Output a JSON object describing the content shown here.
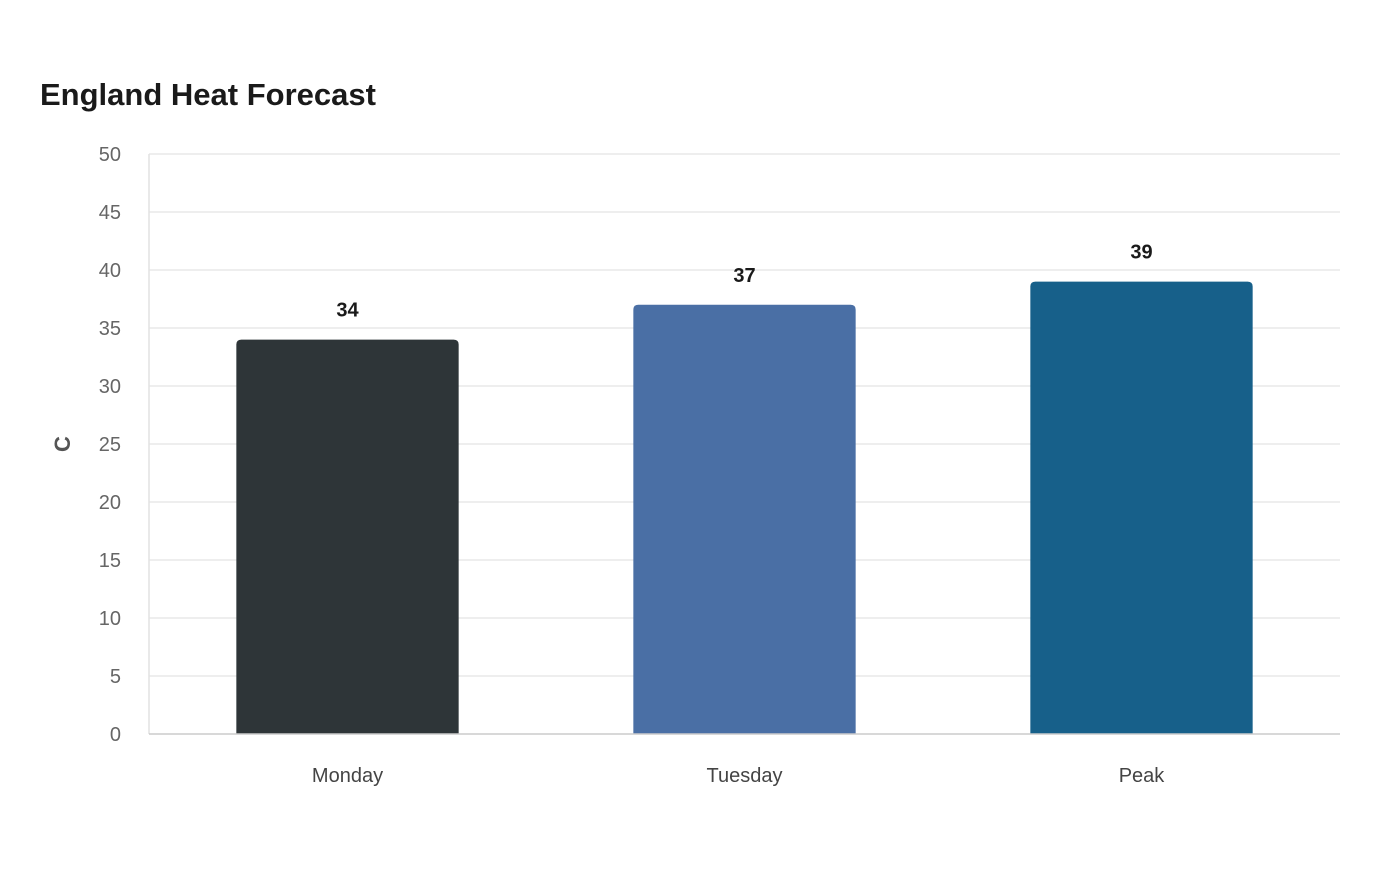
{
  "chart_data": {
    "type": "bar",
    "title": "England Heat Forecast",
    "xlabel": "",
    "ylabel": "C",
    "categories": [
      "Monday",
      "Tuesday",
      "Peak"
    ],
    "values": [
      34,
      37,
      39
    ],
    "colors": [
      "#2e3538",
      "#4a6fa5",
      "#17608a"
    ],
    "ylim": [
      0,
      50
    ],
    "yticks": [
      0,
      5,
      10,
      15,
      20,
      25,
      30,
      35,
      40,
      45,
      50
    ],
    "grid": true,
    "legend": "none",
    "data_labels": true
  }
}
